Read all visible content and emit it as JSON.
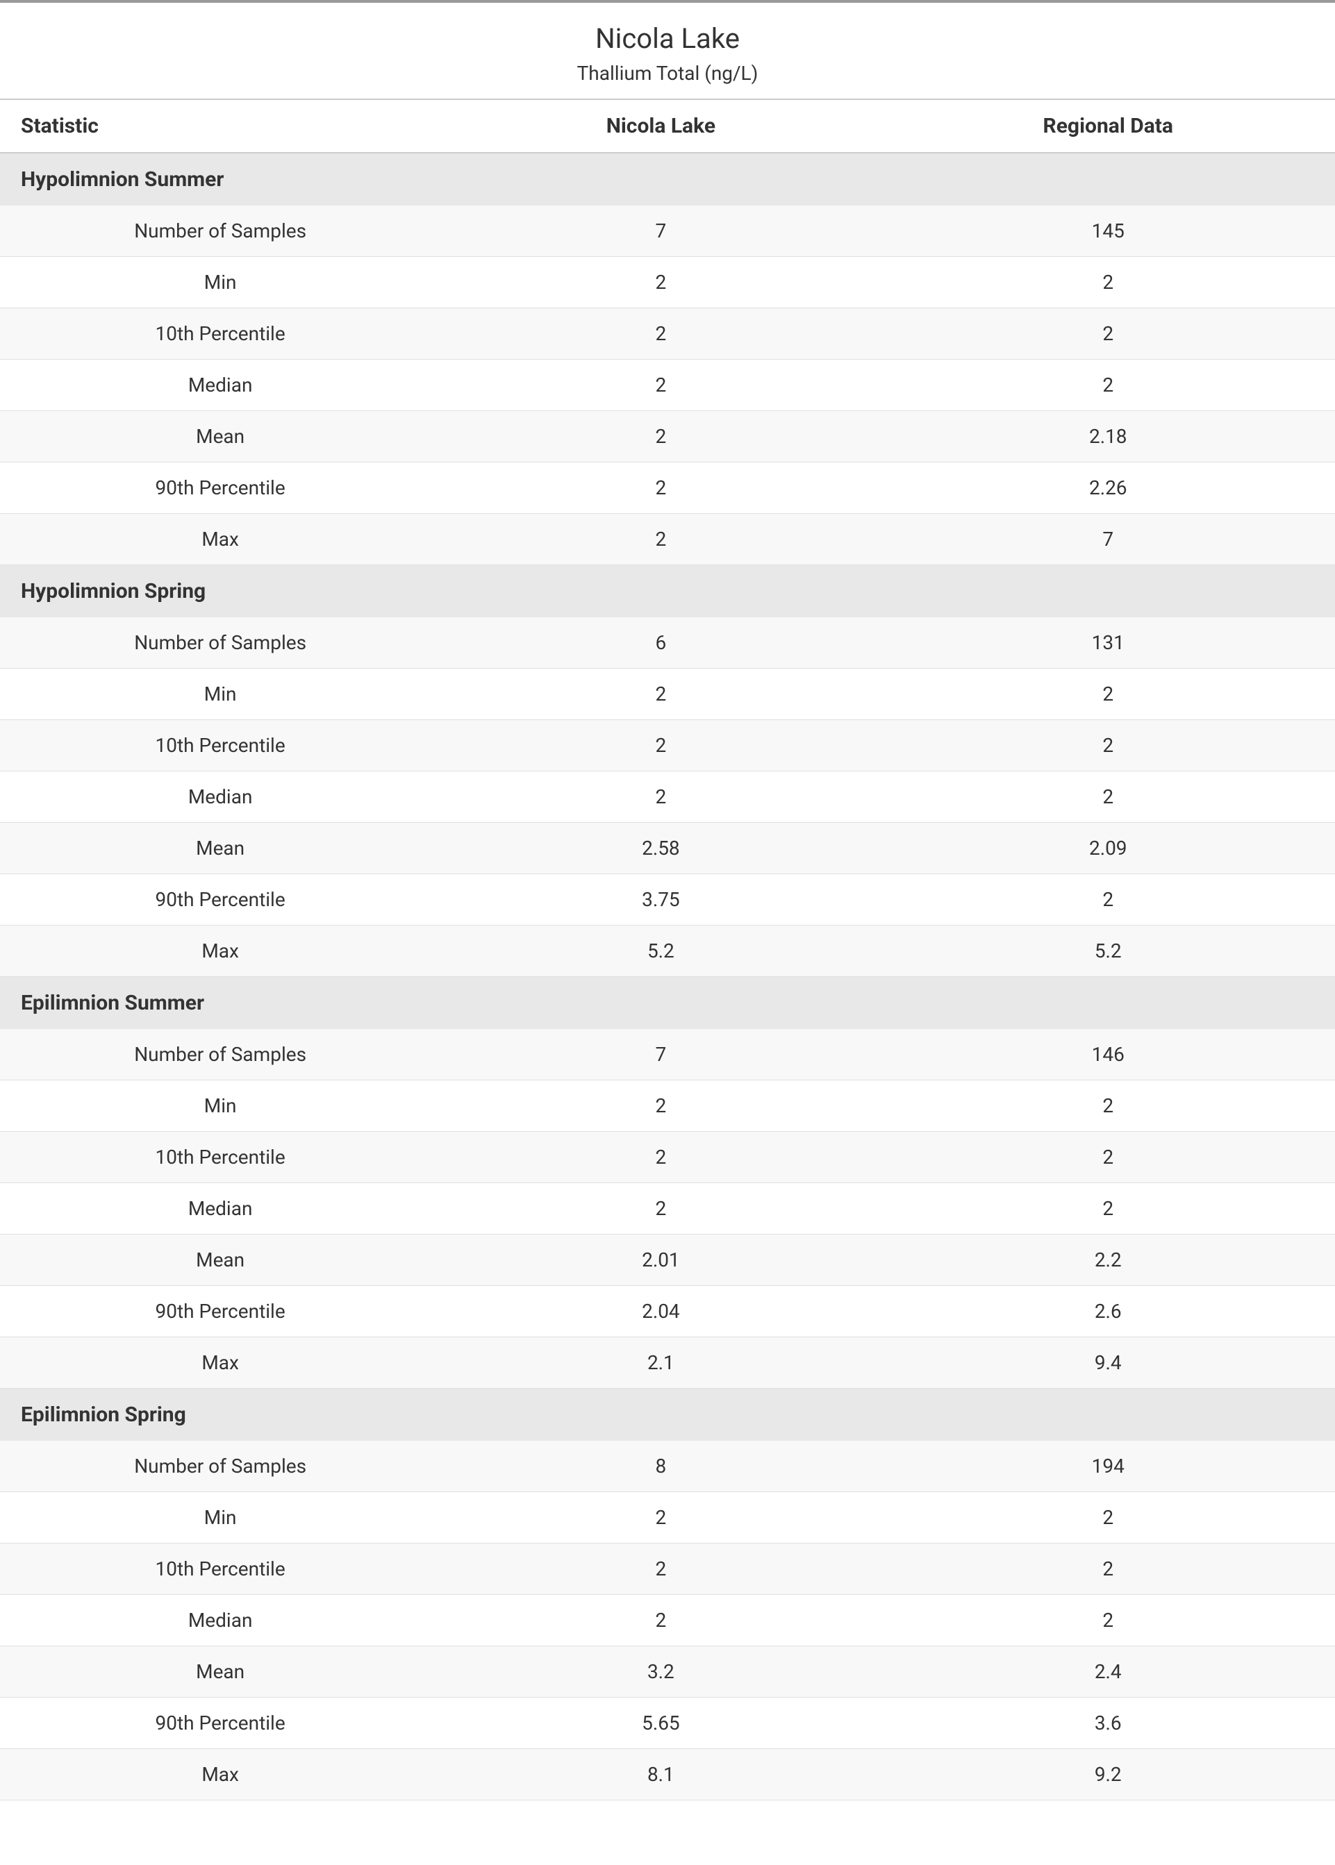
{
  "header": {
    "title": "Nicola Lake",
    "subtitle": "Thallium Total (ng/L)"
  },
  "columns": {
    "statistic": "Statistic",
    "col1": "Nicola Lake",
    "col2": "Regional Data"
  },
  "sections": [
    {
      "name": "Hypolimnion Summer",
      "rows": [
        {
          "stat": "Number of Samples",
          "v1": "7",
          "v2": "145"
        },
        {
          "stat": "Min",
          "v1": "2",
          "v2": "2"
        },
        {
          "stat": "10th Percentile",
          "v1": "2",
          "v2": "2"
        },
        {
          "stat": "Median",
          "v1": "2",
          "v2": "2"
        },
        {
          "stat": "Mean",
          "v1": "2",
          "v2": "2.18"
        },
        {
          "stat": "90th Percentile",
          "v1": "2",
          "v2": "2.26"
        },
        {
          "stat": "Max",
          "v1": "2",
          "v2": "7"
        }
      ]
    },
    {
      "name": "Hypolimnion Spring",
      "rows": [
        {
          "stat": "Number of Samples",
          "v1": "6",
          "v2": "131"
        },
        {
          "stat": "Min",
          "v1": "2",
          "v2": "2"
        },
        {
          "stat": "10th Percentile",
          "v1": "2",
          "v2": "2"
        },
        {
          "stat": "Median",
          "v1": "2",
          "v2": "2"
        },
        {
          "stat": "Mean",
          "v1": "2.58",
          "v2": "2.09"
        },
        {
          "stat": "90th Percentile",
          "v1": "3.75",
          "v2": "2"
        },
        {
          "stat": "Max",
          "v1": "5.2",
          "v2": "5.2"
        }
      ]
    },
    {
      "name": "Epilimnion Summer",
      "rows": [
        {
          "stat": "Number of Samples",
          "v1": "7",
          "v2": "146"
        },
        {
          "stat": "Min",
          "v1": "2",
          "v2": "2"
        },
        {
          "stat": "10th Percentile",
          "v1": "2",
          "v2": "2"
        },
        {
          "stat": "Median",
          "v1": "2",
          "v2": "2"
        },
        {
          "stat": "Mean",
          "v1": "2.01",
          "v2": "2.2"
        },
        {
          "stat": "90th Percentile",
          "v1": "2.04",
          "v2": "2.6"
        },
        {
          "stat": "Max",
          "v1": "2.1",
          "v2": "9.4"
        }
      ]
    },
    {
      "name": "Epilimnion Spring",
      "rows": [
        {
          "stat": "Number of Samples",
          "v1": "8",
          "v2": "194"
        },
        {
          "stat": "Min",
          "v1": "2",
          "v2": "2"
        },
        {
          "stat": "10th Percentile",
          "v1": "2",
          "v2": "2"
        },
        {
          "stat": "Median",
          "v1": "2",
          "v2": "2"
        },
        {
          "stat": "Mean",
          "v1": "3.2",
          "v2": "2.4"
        },
        {
          "stat": "90th Percentile",
          "v1": "5.65",
          "v2": "3.6"
        },
        {
          "stat": "Max",
          "v1": "8.1",
          "v2": "9.2"
        }
      ]
    }
  ],
  "styling": {
    "background_color": "#ffffff",
    "section_header_bg": "#e8e8e8",
    "alt_row_bg": "#f8f8f8",
    "border_color": "#cccccc",
    "top_border_color": "#999999",
    "text_color": "#333333",
    "title_fontsize": 40,
    "header_fontsize": 30,
    "body_fontsize": 28,
    "font_family": "Segoe UI"
  }
}
